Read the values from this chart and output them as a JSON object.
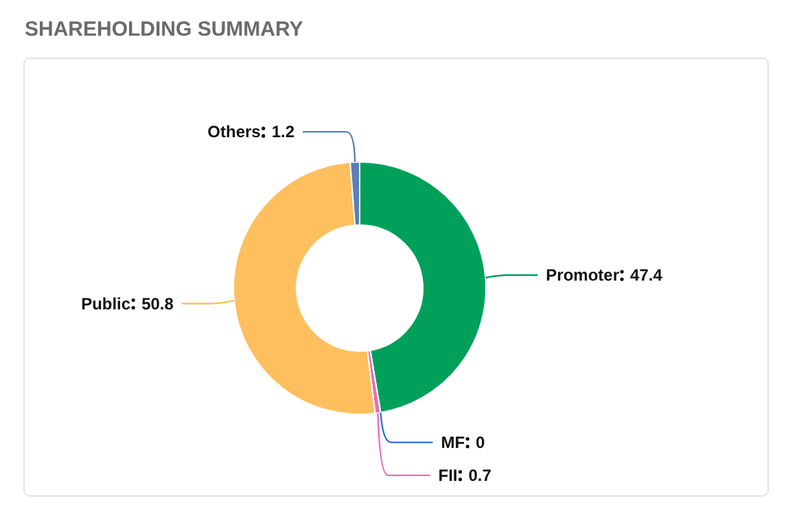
{
  "chart_data": {
    "type": "donut",
    "title": "SHAREHOLDING SUMMARY",
    "categories": [
      "Promoter",
      "MF",
      "FII",
      "Public",
      "Others"
    ],
    "values": [
      47.4,
      0,
      0.7,
      50.8,
      1.2
    ],
    "colors": [
      "#00a05a",
      "#2f6fd6",
      "#e86fb5",
      "#ffbf5e",
      "#5b7fb8"
    ],
    "value_labels": [
      "47.4",
      "0",
      "0.7",
      "50.8",
      "1.2"
    ]
  }
}
